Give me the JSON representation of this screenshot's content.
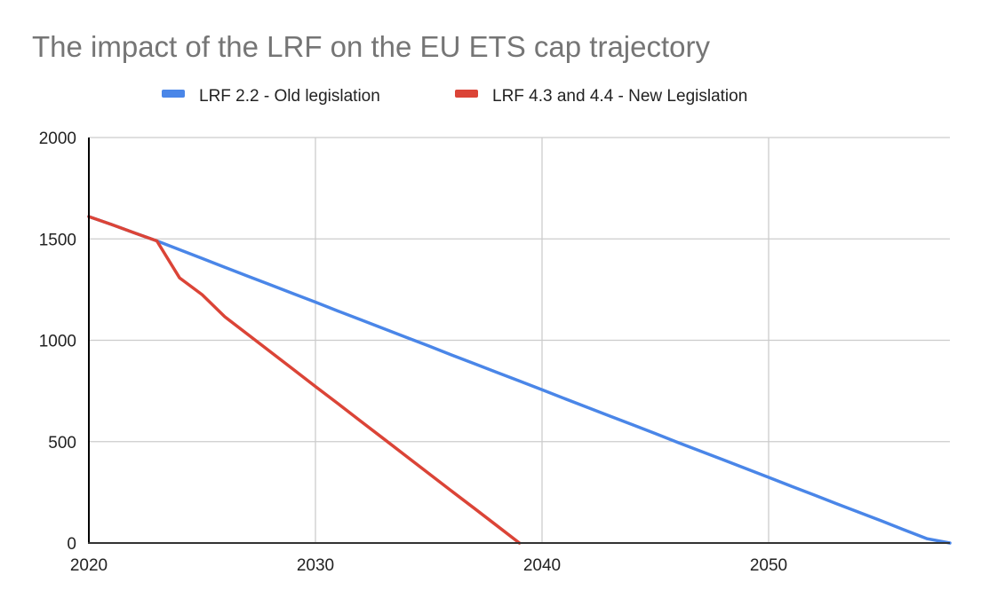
{
  "chart_data": {
    "type": "line",
    "title": "The impact of the LRF on the EU ETS cap trajectory",
    "xlabel": "",
    "ylabel": "",
    "xlim": [
      2020,
      2058
    ],
    "ylim": [
      0,
      2000
    ],
    "x_ticks": [
      "2020",
      "2030",
      "2040",
      "2050"
    ],
    "y_ticks": [
      "0",
      "500",
      "1000",
      "1500",
      "2000"
    ],
    "grid": true,
    "legend_position": "top",
    "series": [
      {
        "name": "LRF 2.2 - Old legislation",
        "color": "#4a86e8",
        "x": [
          2020,
          2021,
          2022,
          2023,
          2024,
          2025,
          2026,
          2027,
          2028,
          2029,
          2030,
          2031,
          2032,
          2033,
          2034,
          2035,
          2036,
          2037,
          2038,
          2039,
          2040,
          2041,
          2042,
          2043,
          2044,
          2045,
          2046,
          2047,
          2048,
          2049,
          2050,
          2051,
          2052,
          2053,
          2054,
          2055,
          2056,
          2057,
          2058
        ],
        "values": [
          1610,
          1571,
          1530,
          1490,
          1447,
          1404,
          1360,
          1317,
          1274,
          1231,
          1188,
          1144,
          1101,
          1058,
          1015,
          972,
          928,
          885,
          842,
          799,
          756,
          712,
          669,
          626,
          583,
          540,
          496,
          453,
          410,
          367,
          324,
          280,
          237,
          194,
          151,
          108,
          64,
          21,
          0
        ]
      },
      {
        "name": "LRF 4.3 and 4.4 - New Legislation",
        "color": "#db4437",
        "x": [
          2020,
          2021,
          2022,
          2023,
          2024,
          2025,
          2026,
          2027,
          2028,
          2029,
          2030,
          2031,
          2032,
          2033,
          2034,
          2035,
          2036,
          2037,
          2038,
          2039
        ],
        "values": [
          1610,
          1571,
          1530,
          1490,
          1308,
          1225,
          1116,
          1030,
          944,
          858,
          772,
          687,
          601,
          515,
          429,
          343,
          257,
          172,
          86,
          0
        ]
      }
    ]
  }
}
